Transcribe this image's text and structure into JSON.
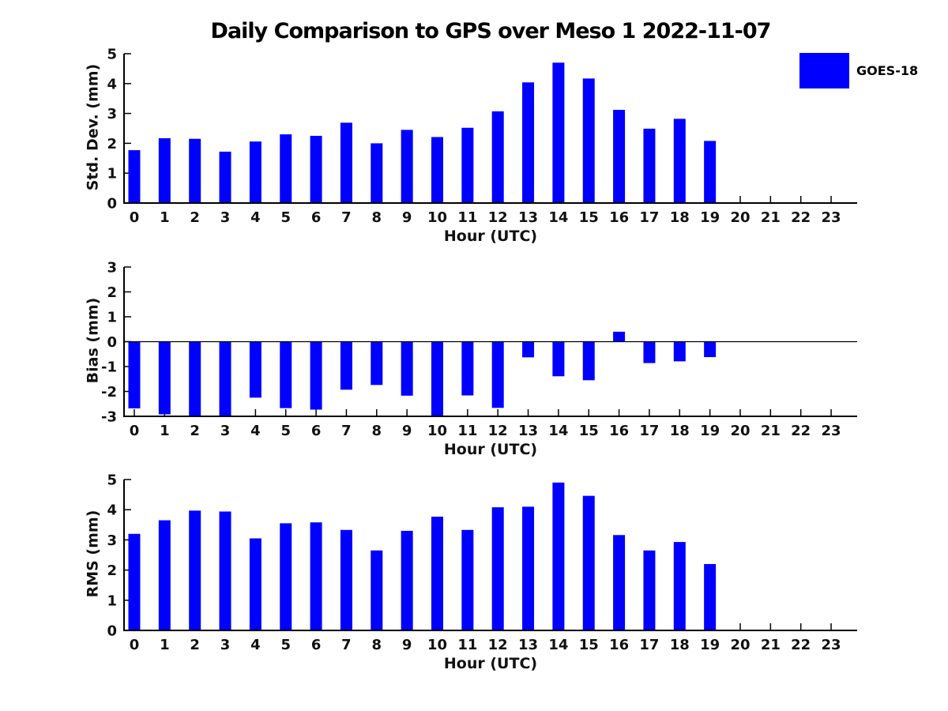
{
  "title": "Daily Comparison to GPS over Meso 1 2022-11-07",
  "legend": {
    "label": "GOES-18",
    "color": "#0000FF",
    "position": "outside-top-right"
  },
  "chart_data": [
    {
      "type": "bar",
      "name": "std-dev",
      "title": "",
      "ylabel": "Std. Dev. (mm)",
      "xlabel": "Hour (UTC)",
      "series": "GOES-18",
      "ylim": [
        0,
        5
      ],
      "yticks": [
        0,
        1,
        2,
        3,
        4,
        5
      ],
      "grid": false,
      "categories": [
        0,
        1,
        2,
        3,
        4,
        5,
        6,
        7,
        8,
        9,
        10,
        11,
        12,
        13,
        14,
        15,
        16,
        17,
        18,
        19,
        20,
        21,
        22,
        23
      ],
      "values": [
        1.77,
        2.17,
        2.15,
        1.72,
        2.06,
        2.3,
        2.25,
        2.69,
        2.0,
        2.45,
        2.21,
        2.52,
        3.07,
        4.04,
        4.7,
        4.17,
        3.12,
        2.49,
        2.82,
        2.08,
        null,
        null,
        null,
        null
      ]
    },
    {
      "type": "bar",
      "name": "bias",
      "title": "",
      "ylabel": "Bias (mm)",
      "xlabel": "Hour (UTC)",
      "series": "GOES-18",
      "ylim": [
        -3,
        3
      ],
      "yticks": [
        -3,
        -2,
        -1,
        0,
        1,
        2,
        3
      ],
      "zero_line": true,
      "grid": false,
      "categories": [
        0,
        1,
        2,
        3,
        4,
        5,
        6,
        7,
        8,
        9,
        10,
        11,
        12,
        13,
        14,
        15,
        16,
        17,
        18,
        19,
        20,
        21,
        22,
        23
      ],
      "values": [
        -2.68,
        -2.92,
        -3.0,
        -3.0,
        -2.25,
        -2.67,
        -2.73,
        -1.93,
        -1.74,
        -2.17,
        -3.0,
        -2.16,
        -2.66,
        -0.63,
        -1.39,
        -1.55,
        0.4,
        -0.86,
        -0.79,
        -0.62,
        null,
        null,
        null,
        null
      ]
    },
    {
      "type": "bar",
      "name": "rms",
      "title": "",
      "ylabel": "RMS (mm)",
      "xlabel": "Hour (UTC)",
      "series": "GOES-18",
      "ylim": [
        0,
        5
      ],
      "yticks": [
        0,
        1,
        2,
        3,
        4,
        5
      ],
      "grid": false,
      "categories": [
        0,
        1,
        2,
        3,
        4,
        5,
        6,
        7,
        8,
        9,
        10,
        11,
        12,
        13,
        14,
        15,
        16,
        17,
        18,
        19,
        20,
        21,
        22,
        23
      ],
      "values": [
        3.2,
        3.65,
        3.97,
        3.94,
        3.05,
        3.55,
        3.58,
        3.33,
        2.65,
        3.3,
        3.77,
        3.33,
        4.08,
        4.1,
        4.9,
        4.46,
        3.16,
        2.65,
        2.93,
        2.2,
        null,
        null,
        null,
        null
      ]
    }
  ]
}
